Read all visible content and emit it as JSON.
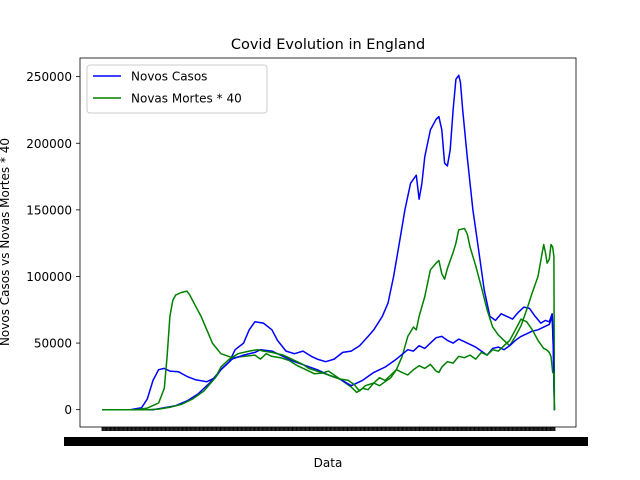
{
  "chart_data": {
    "type": "line",
    "title": "Covid Evolution in England",
    "xlabel": "Data",
    "ylabel": "Novos Casos vs Novas Mortes * 40",
    "ylim": [
      -13000,
      264000
    ],
    "yticks": [
      0,
      50000,
      100000,
      150000,
      200000,
      250000
    ],
    "legend_position": "top-left",
    "grid": false,
    "x_tick_note": "dense overlapping daily date tick labels (illegible)",
    "series": [
      {
        "name": "Novos Casos",
        "color": "#0000ff",
        "points": [
          [
            0.0,
            0
          ],
          [
            5.0,
            0
          ],
          [
            7.0,
            1500
          ],
          [
            8.0,
            8000
          ],
          [
            9.0,
            22000
          ],
          [
            10.0,
            30000
          ],
          [
            11.0,
            31000
          ],
          [
            12.0,
            29000
          ],
          [
            13.5,
            28500
          ],
          [
            15.0,
            25000
          ],
          [
            16.5,
            22500
          ],
          [
            18.5,
            21000
          ],
          [
            20.0,
            24000
          ],
          [
            21.0,
            30000
          ],
          [
            22.5,
            36000
          ],
          [
            23.5,
            45000
          ],
          [
            25.0,
            50000
          ],
          [
            26.0,
            60000
          ],
          [
            27.0,
            66000
          ],
          [
            28.5,
            65000
          ],
          [
            30.0,
            60000
          ],
          [
            31.0,
            52000
          ],
          [
            32.5,
            44000
          ],
          [
            34.0,
            42000
          ],
          [
            35.5,
            44000
          ],
          [
            37.0,
            40000
          ],
          [
            38.0,
            38000
          ],
          [
            39.5,
            36000
          ],
          [
            41.0,
            38000
          ],
          [
            42.5,
            43000
          ],
          [
            44.0,
            44000
          ],
          [
            45.5,
            48000
          ],
          [
            47.0,
            55000
          ],
          [
            48.0,
            60000
          ],
          [
            49.5,
            70000
          ],
          [
            50.5,
            80000
          ],
          [
            51.5,
            100000
          ],
          [
            52.5,
            125000
          ],
          [
            53.5,
            150000
          ],
          [
            54.5,
            170000
          ],
          [
            55.5,
            176000
          ],
          [
            56.0,
            158000
          ],
          [
            56.5,
            170000
          ],
          [
            57.0,
            190000
          ],
          [
            58.0,
            210000
          ],
          [
            59.0,
            218000
          ],
          [
            59.5,
            220000
          ],
          [
            60.0,
            210000
          ],
          [
            60.5,
            185000
          ],
          [
            61.0,
            183000
          ],
          [
            61.5,
            195000
          ],
          [
            62.0,
            225000
          ],
          [
            62.5,
            248000
          ],
          [
            63.0,
            251000
          ],
          [
            63.3,
            246000
          ],
          [
            63.7,
            225000
          ],
          [
            64.5,
            190000
          ],
          [
            65.5,
            150000
          ],
          [
            66.5,
            120000
          ],
          [
            67.5,
            90000
          ],
          [
            68.5,
            70000
          ],
          [
            69.5,
            67000
          ],
          [
            70.5,
            72000
          ],
          [
            71.5,
            70000
          ],
          [
            72.5,
            68000
          ],
          [
            73.5,
            73000
          ],
          [
            74.5,
            77000
          ],
          [
            75.5,
            76000
          ],
          [
            76.5,
            70000
          ],
          [
            77.5,
            65000
          ],
          [
            78.3,
            67000
          ],
          [
            79.0,
            66000
          ],
          [
            79.5,
            72000
          ],
          [
            79.7,
            50000
          ],
          [
            79.9,
            0
          ],
          [
            80.0,
            0
          ]
        ]
      },
      {
        "name": "Novas Mortes * 40",
        "color": "#008000",
        "points": [
          [
            0.0,
            0
          ],
          [
            6.0,
            0
          ],
          [
            8.0,
            1200
          ],
          [
            10.0,
            5000
          ],
          [
            11.0,
            16000
          ],
          [
            11.5,
            40000
          ],
          [
            12.0,
            70000
          ],
          [
            12.5,
            82000
          ],
          [
            13.0,
            86000
          ],
          [
            14.0,
            88000
          ],
          [
            15.0,
            89000
          ],
          [
            15.5,
            86000
          ],
          [
            16.5,
            78000
          ],
          [
            17.5,
            70000
          ],
          [
            18.5,
            60000
          ],
          [
            19.5,
            50000
          ],
          [
            21.0,
            42000
          ],
          [
            23.0,
            39000
          ],
          [
            25.0,
            40000
          ],
          [
            27.0,
            41000
          ],
          [
            28.0,
            38000
          ],
          [
            29.0,
            42000
          ],
          [
            30.0,
            40000
          ],
          [
            31.5,
            39000
          ],
          [
            33.0,
            37000
          ],
          [
            34.5,
            33000
          ],
          [
            36.0,
            30000
          ],
          [
            37.5,
            27000
          ],
          [
            39.0,
            27500
          ],
          [
            40.0,
            29000
          ],
          [
            41.0,
            26000
          ],
          [
            42.0,
            23000
          ],
          [
            43.0,
            20000
          ],
          [
            44.0,
            17000
          ],
          [
            45.0,
            13000
          ],
          [
            46.0,
            16000
          ],
          [
            47.0,
            15000
          ],
          [
            48.0,
            20000
          ],
          [
            49.0,
            18000
          ],
          [
            50.0,
            21000
          ],
          [
            51.0,
            24000
          ],
          [
            52.0,
            30000
          ],
          [
            53.0,
            40000
          ],
          [
            54.0,
            55000
          ],
          [
            55.0,
            62000
          ],
          [
            55.5,
            60000
          ],
          [
            56.0,
            70000
          ],
          [
            57.0,
            85000
          ],
          [
            57.5,
            95000
          ],
          [
            58.0,
            105000
          ],
          [
            59.0,
            110000
          ],
          [
            59.5,
            112000
          ],
          [
            60.0,
            102000
          ],
          [
            60.5,
            98000
          ],
          [
            61.0,
            106000
          ],
          [
            62.0,
            118000
          ],
          [
            62.5,
            125000
          ],
          [
            63.0,
            135000
          ],
          [
            64.0,
            136000
          ],
          [
            64.5,
            132000
          ],
          [
            65.0,
            122000
          ],
          [
            66.0,
            108000
          ],
          [
            67.0,
            92000
          ],
          [
            68.0,
            75000
          ],
          [
            69.0,
            62000
          ],
          [
            70.0,
            56000
          ],
          [
            71.0,
            52000
          ],
          [
            72.0,
            48000
          ],
          [
            73.0,
            55000
          ],
          [
            74.0,
            63000
          ],
          [
            75.0,
            75000
          ],
          [
            76.0,
            88000
          ],
          [
            77.0,
            100000
          ],
          [
            77.5,
            112000
          ],
          [
            78.0,
            124000
          ],
          [
            78.3,
            118000
          ],
          [
            78.6,
            110000
          ],
          [
            79.0,
            113000
          ],
          [
            79.3,
            124000
          ],
          [
            79.6,
            122000
          ],
          [
            79.8,
            115000
          ],
          [
            79.9,
            0
          ],
          [
            80.0,
            0
          ]
        ]
      },
      {
        "name": "",
        "color": "#0000ff",
        "points": [
          [
            0.0,
            0
          ],
          [
            7.0,
            0
          ],
          [
            9.0,
            0
          ],
          [
            11.0,
            1500
          ],
          [
            13.0,
            3000
          ],
          [
            15.0,
            6500
          ],
          [
            17.0,
            12000
          ],
          [
            19.0,
            20000
          ],
          [
            21.0,
            30000
          ],
          [
            23.0,
            38000
          ],
          [
            25.0,
            41000
          ],
          [
            27.0,
            43000
          ],
          [
            28.0,
            45000
          ],
          [
            30.0,
            44000
          ],
          [
            32.0,
            40000
          ],
          [
            34.0,
            36000
          ],
          [
            36.0,
            33000
          ],
          [
            38.0,
            30000
          ],
          [
            40.0,
            26000
          ],
          [
            42.0,
            23000
          ],
          [
            44.0,
            18000
          ],
          [
            46.0,
            22000
          ],
          [
            48.0,
            28000
          ],
          [
            50.0,
            32000
          ],
          [
            52.0,
            38000
          ],
          [
            54.0,
            45000
          ],
          [
            55.0,
            44000
          ],
          [
            56.0,
            48000
          ],
          [
            57.0,
            46000
          ],
          [
            58.0,
            50000
          ],
          [
            59.0,
            54000
          ],
          [
            60.0,
            55000
          ],
          [
            61.0,
            52000
          ],
          [
            62.0,
            50000
          ],
          [
            63.0,
            53000
          ],
          [
            64.0,
            51000
          ],
          [
            65.0,
            49000
          ],
          [
            66.0,
            47000
          ],
          [
            67.0,
            44000
          ],
          [
            68.0,
            41000
          ],
          [
            69.0,
            46000
          ],
          [
            70.0,
            47000
          ],
          [
            71.0,
            45000
          ],
          [
            72.0,
            48000
          ],
          [
            73.0,
            52000
          ],
          [
            74.0,
            55000
          ],
          [
            75.0,
            57000
          ],
          [
            76.0,
            59000
          ],
          [
            77.0,
            60000
          ],
          [
            78.0,
            62000
          ],
          [
            79.0,
            64000
          ],
          [
            79.5,
            70000
          ],
          [
            79.7,
            45000
          ],
          [
            79.9,
            0
          ],
          [
            80.0,
            0
          ]
        ]
      },
      {
        "name": "",
        "color": "#008000",
        "points": [
          [
            0.0,
            0
          ],
          [
            8.0,
            0
          ],
          [
            10.0,
            400
          ],
          [
            12.0,
            1800
          ],
          [
            14.0,
            4000
          ],
          [
            16.0,
            8000
          ],
          [
            18.0,
            14000
          ],
          [
            20.0,
            24000
          ],
          [
            21.0,
            32000
          ],
          [
            22.5,
            38000
          ],
          [
            24.0,
            42000
          ],
          [
            26.0,
            44000
          ],
          [
            27.5,
            45000
          ],
          [
            28.5,
            44000
          ],
          [
            30.0,
            43000
          ],
          [
            32.0,
            41000
          ],
          [
            34.0,
            37000
          ],
          [
            35.5,
            34000
          ],
          [
            36.5,
            31000
          ],
          [
            38.0,
            29000
          ],
          [
            40.0,
            26000
          ],
          [
            42.0,
            23000
          ],
          [
            43.5,
            22000
          ],
          [
            44.5,
            19000
          ],
          [
            45.5,
            14000
          ],
          [
            46.5,
            18000
          ],
          [
            48.0,
            20000
          ],
          [
            49.0,
            24000
          ],
          [
            50.0,
            22000
          ],
          [
            51.0,
            26000
          ],
          [
            52.0,
            30000
          ],
          [
            53.0,
            28000
          ],
          [
            54.0,
            26000
          ],
          [
            55.0,
            30000
          ],
          [
            56.0,
            33000
          ],
          [
            57.0,
            31000
          ],
          [
            58.0,
            34000
          ],
          [
            59.0,
            29000
          ],
          [
            59.5,
            28000
          ],
          [
            60.0,
            32000
          ],
          [
            61.0,
            36000
          ],
          [
            62.0,
            35000
          ],
          [
            63.0,
            40000
          ],
          [
            64.0,
            39000
          ],
          [
            65.0,
            41000
          ],
          [
            66.0,
            38000
          ],
          [
            67.0,
            43000
          ],
          [
            68.0,
            41000
          ],
          [
            69.0,
            45000
          ],
          [
            70.0,
            44000
          ],
          [
            71.0,
            48000
          ],
          [
            72.0,
            52000
          ],
          [
            73.0,
            60000
          ],
          [
            74.0,
            68000
          ],
          [
            75.0,
            66000
          ],
          [
            76.0,
            60000
          ],
          [
            77.0,
            52000
          ],
          [
            78.0,
            46000
          ],
          [
            78.5,
            45000
          ],
          [
            79.0,
            43000
          ],
          [
            79.3,
            40000
          ],
          [
            79.6,
            28000
          ],
          [
            79.8,
            27000
          ],
          [
            79.9,
            0
          ],
          [
            80.0,
            0
          ]
        ]
      }
    ]
  }
}
